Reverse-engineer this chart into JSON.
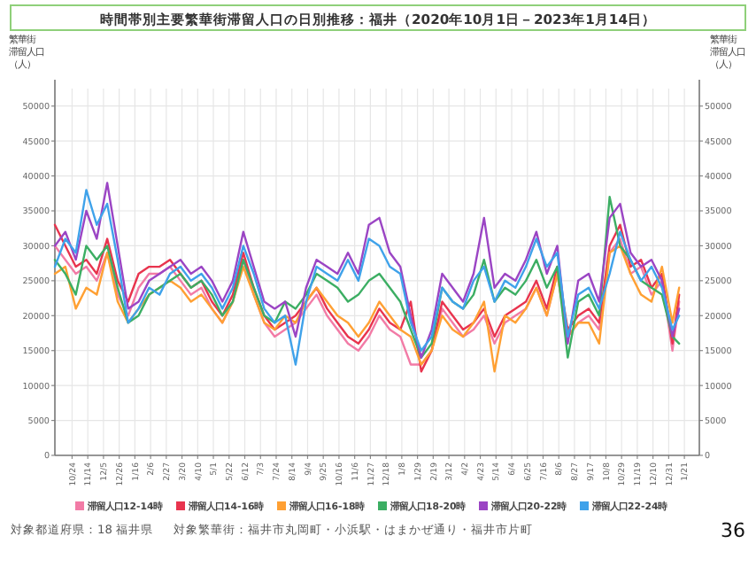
{
  "chart_data": {
    "type": "line",
    "title": "時間帯別主要繁華街滞留人口の日別推移：福井（2020年10月1日－2023年1月14日）",
    "ylabel": "繁華街滞留人口（人）",
    "y2label": "繁華街滞留人口（人）",
    "x": [
      "2020-10-01",
      "2020-10-15",
      "2020-10-29",
      "2020-11-12",
      "2020-11-26",
      "2020-12-10",
      "2020-12-24",
      "2021-01-07",
      "2021-01-21",
      "2021-02-04",
      "2021-02-18",
      "2021-03-04",
      "2021-03-18",
      "2021-04-01",
      "2021-04-15",
      "2021-04-29",
      "2021-05-13",
      "2021-05-27",
      "2021-06-10",
      "2021-06-24",
      "2021-07-08",
      "2021-07-22",
      "2021-08-05",
      "2021-08-19",
      "2021-09-02",
      "2021-09-16",
      "2021-09-30",
      "2021-10-14",
      "2021-10-28",
      "2021-11-11",
      "2021-11-25",
      "2021-12-09",
      "2021-12-23",
      "2022-01-06",
      "2022-01-20",
      "2022-02-03",
      "2022-02-17",
      "2022-03-03",
      "2022-03-17",
      "2022-03-31",
      "2022-04-14",
      "2022-04-28",
      "2022-05-12",
      "2022-05-26",
      "2022-06-09",
      "2022-06-23",
      "2022-07-07",
      "2022-07-21",
      "2022-08-04",
      "2022-08-18",
      "2022-09-01",
      "2022-09-15",
      "2022-09-29",
      "2022-10-13",
      "2022-10-27",
      "2022-11-10",
      "2022-11-24",
      "2022-12-08",
      "2022-12-22",
      "2023-01-05",
      "2023-01-14"
    ],
    "series": [
      {
        "name": "滞留人口12-14時",
        "color": "#f27ba6",
        "values": [
          30000,
          28000,
          26000,
          27000,
          25000,
          29000,
          23000,
          20000,
          24000,
          26000,
          26000,
          27000,
          25000,
          23000,
          24000,
          21000,
          19000,
          22000,
          28000,
          23000,
          19000,
          17000,
          18000,
          19000,
          21000,
          23000,
          20000,
          18000,
          16000,
          15000,
          17000,
          20000,
          18000,
          17000,
          13000,
          13000,
          15000,
          21000,
          19000,
          17000,
          18000,
          20000,
          16000,
          19000,
          20000,
          21000,
          24000,
          20000,
          26000,
          17000,
          19000,
          20000,
          18000,
          29000,
          31000,
          26000,
          27000,
          23000,
          25000,
          15000,
          22000
        ]
      },
      {
        "name": "滞留人口14-16時",
        "color": "#e8344e",
        "values": [
          33000,
          30000,
          27000,
          28000,
          26000,
          31000,
          25000,
          22000,
          26000,
          27000,
          27000,
          28000,
          26000,
          24000,
          25000,
          22000,
          20000,
          23000,
          29000,
          24000,
          20000,
          18000,
          19000,
          20000,
          22000,
          24000,
          21000,
          19000,
          17000,
          16000,
          18000,
          21000,
          19000,
          18000,
          22000,
          12000,
          15000,
          22000,
          20000,
          18000,
          19000,
          21000,
          17000,
          20000,
          21000,
          22000,
          25000,
          21000,
          27000,
          18000,
          20000,
          21000,
          19000,
          30000,
          33000,
          27000,
          28000,
          24000,
          26000,
          16000,
          23000
        ]
      },
      {
        "name": "滞留人口16-18時",
        "color": "#ffa033",
        "values": [
          26000,
          27000,
          21000,
          24000,
          23000,
          29000,
          22000,
          19000,
          21000,
          23000,
          24000,
          25000,
          24000,
          22000,
          23000,
          21000,
          19000,
          22000,
          27000,
          23000,
          19000,
          18000,
          20000,
          19000,
          22000,
          24000,
          22000,
          20000,
          19000,
          17000,
          19000,
          22000,
          20000,
          18000,
          17000,
          13000,
          15000,
          20000,
          18000,
          17000,
          19000,
          22000,
          12000,
          20000,
          19000,
          21000,
          24000,
          20000,
          26000,
          17000,
          19000,
          19000,
          16000,
          29000,
          30000,
          26000,
          23000,
          22000,
          27000,
          19000,
          24000
        ]
      },
      {
        "name": "滞留人口18-20時",
        "color": "#3cae63",
        "values": [
          28000,
          26000,
          23000,
          30000,
          28000,
          30000,
          24000,
          19000,
          20000,
          23000,
          24000,
          25000,
          26000,
          24000,
          25000,
          23000,
          20000,
          22000,
          28000,
          24000,
          20000,
          19000,
          22000,
          21000,
          23000,
          26000,
          25000,
          24000,
          22000,
          23000,
          25000,
          26000,
          24000,
          22000,
          18000,
          14000,
          16000,
          24000,
          22000,
          21000,
          23000,
          28000,
          22000,
          24000,
          23000,
          25000,
          28000,
          24000,
          27000,
          14000,
          22000,
          23000,
          20000,
          37000,
          30000,
          28000,
          25000,
          24000,
          23000,
          17000,
          16000
        ]
      },
      {
        "name": "滞留人口20-22時",
        "color": "#9b45c4",
        "values": [
          30000,
          32000,
          28000,
          35000,
          31000,
          39000,
          30000,
          21000,
          22000,
          25000,
          26000,
          27000,
          28000,
          26000,
          27000,
          25000,
          22000,
          25000,
          32000,
          27000,
          22000,
          21000,
          22000,
          17000,
          24000,
          28000,
          27000,
          26000,
          29000,
          26000,
          33000,
          34000,
          29000,
          27000,
          20000,
          14000,
          18000,
          26000,
          24000,
          22000,
          26000,
          34000,
          24000,
          26000,
          25000,
          28000,
          32000,
          26000,
          30000,
          16000,
          25000,
          26000,
          22000,
          34000,
          36000,
          29000,
          27000,
          28000,
          25000,
          17000,
          21000
        ]
      },
      {
        "name": "滞留人口22-24時",
        "color": "#3fa2ea",
        "values": [
          27000,
          31000,
          29000,
          38000,
          33000,
          36000,
          28000,
          19000,
          21000,
          24000,
          23000,
          26000,
          27000,
          25000,
          26000,
          24000,
          21000,
          24000,
          30000,
          26000,
          21000,
          19000,
          20000,
          13000,
          22000,
          27000,
          26000,
          25000,
          28000,
          25000,
          31000,
          30000,
          27000,
          26000,
          19000,
          15000,
          17000,
          24000,
          22000,
          21000,
          25000,
          27000,
          22000,
          25000,
          24000,
          27000,
          31000,
          27000,
          29000,
          17000,
          23000,
          24000,
          21000,
          26000,
          32000,
          28000,
          25000,
          27000,
          24000,
          18000,
          20000
        ]
      }
    ],
    "xlim": [
      "2020-10-01",
      "2023-02-10"
    ],
    "xticks": [
      {
        "value": "2020-10-24",
        "label": "10/24"
      },
      {
        "value": "2020-11-14",
        "label": "11/14"
      },
      {
        "value": "2020-12-05",
        "label": "12/5"
      },
      {
        "value": "2020-12-26",
        "label": "12/26"
      },
      {
        "value": "2021-01-16",
        "label": "1/16"
      },
      {
        "value": "2021-02-06",
        "label": "2/6"
      },
      {
        "value": "2021-02-27",
        "label": "2/27"
      },
      {
        "value": "2021-03-20",
        "label": "3/20"
      },
      {
        "value": "2021-04-10",
        "label": "4/10"
      },
      {
        "value": "2021-05-01",
        "label": "5/1"
      },
      {
        "value": "2021-05-22",
        "label": "5/22"
      },
      {
        "value": "2021-06-12",
        "label": "6/12"
      },
      {
        "value": "2021-07-03",
        "label": "7/3"
      },
      {
        "value": "2021-07-24",
        "label": "7/24"
      },
      {
        "value": "2021-08-14",
        "label": "8/14"
      },
      {
        "value": "2021-09-04",
        "label": "9/4"
      },
      {
        "value": "2021-09-25",
        "label": "9/25"
      },
      {
        "value": "2021-10-16",
        "label": "10/16"
      },
      {
        "value": "2021-11-06",
        "label": "11/6"
      },
      {
        "value": "2021-11-27",
        "label": "11/27"
      },
      {
        "value": "2021-12-18",
        "label": "12/18"
      },
      {
        "value": "2022-01-08",
        "label": "1/8"
      },
      {
        "value": "2022-01-29",
        "label": "1/29"
      },
      {
        "value": "2022-02-19",
        "label": "2/19"
      },
      {
        "value": "2022-03-12",
        "label": "3/12"
      },
      {
        "value": "2022-04-02",
        "label": "4/2"
      },
      {
        "value": "2022-04-23",
        "label": "4/23"
      },
      {
        "value": "2022-05-14",
        "label": "5/14"
      },
      {
        "value": "2022-06-04",
        "label": "6/4"
      },
      {
        "value": "2022-06-25",
        "label": "6/25"
      },
      {
        "value": "2022-07-16",
        "label": "7/16"
      },
      {
        "value": "2022-08-06",
        "label": "8/6"
      },
      {
        "value": "2022-08-27",
        "label": "8/27"
      },
      {
        "value": "2022-09-17",
        "label": "9/17"
      },
      {
        "value": "2022-10-08",
        "label": "10/8"
      },
      {
        "value": "2022-10-29",
        "label": "10/29"
      },
      {
        "value": "2022-11-19",
        "label": "11/19"
      },
      {
        "value": "2022-12-10",
        "label": "12/10"
      },
      {
        "value": "2022-12-31",
        "label": "12/31"
      },
      {
        "value": "2023-01-21",
        "label": "1/21"
      }
    ],
    "ylim": [
      0,
      52500
    ],
    "yticks": [
      0,
      5000,
      10000,
      15000,
      20000,
      25000,
      30000,
      35000,
      40000,
      45000,
      50000
    ],
    "y2lim": [
      0,
      52500
    ],
    "y2ticks": [
      0,
      5000,
      10000,
      15000,
      20000,
      25000,
      30000,
      35000,
      40000,
      45000,
      50000
    ],
    "grid": true,
    "legend": "bottom",
    "marker": "none",
    "line_style": "solid",
    "annotations": [
      "対象都道府県：18 福井県",
      "対象繁華街：福井市丸岡町・小浜駅・はまかぜ通り・福井市片町",
      "36"
    ]
  }
}
